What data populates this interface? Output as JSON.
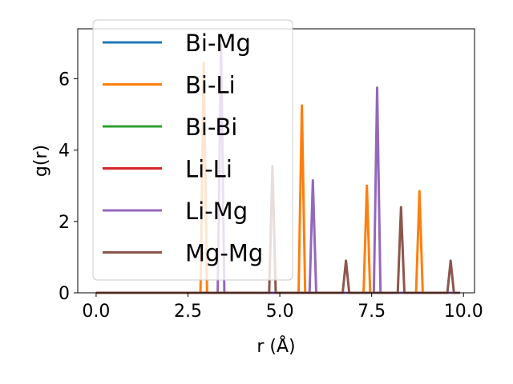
{
  "chart_data": {
    "type": "line",
    "xlabel": "r (Å)",
    "ylabel": "g(r)",
    "xlim": [
      -0.5,
      10.3
    ],
    "ylim": [
      0,
      7.4
    ],
    "xticks": [
      0.0,
      2.5,
      5.0,
      7.5,
      10.0
    ],
    "xtick_labels": [
      "0.0",
      "2.5",
      "5.0",
      "7.5",
      "10.0"
    ],
    "yticks": [
      0,
      2,
      4,
      6
    ],
    "ytick_labels": [
      "0",
      "2",
      "4",
      "6"
    ],
    "grid": false,
    "legend_position": "top-left",
    "x_range": [
      0,
      9.9
    ],
    "series": [
      {
        "name": "Bi-Mg",
        "color": "#1f77b4",
        "peaks": []
      },
      {
        "name": "Bi-Li",
        "color": "#ff7f0e",
        "peaks": [
          [
            2.93,
            6.45
          ],
          [
            5.6,
            5.25
          ],
          [
            7.37,
            3.0
          ],
          [
            8.8,
            2.85
          ]
        ]
      },
      {
        "name": "Bi-Bi",
        "color": "#2ca02c",
        "peaks": []
      },
      {
        "name": "Li-Li",
        "color": "#d62728",
        "peaks": []
      },
      {
        "name": "Li-Mg",
        "color": "#9467bd",
        "peaks": [
          [
            3.4,
            6.95
          ],
          [
            5.9,
            3.15
          ],
          [
            7.65,
            5.75
          ]
        ]
      },
      {
        "name": "Mg-Mg",
        "color": "#8c564b",
        "peaks": [
          [
            4.8,
            3.55
          ],
          [
            6.8,
            0.9
          ],
          [
            8.3,
            2.4
          ],
          [
            9.65,
            0.9
          ]
        ]
      }
    ]
  }
}
